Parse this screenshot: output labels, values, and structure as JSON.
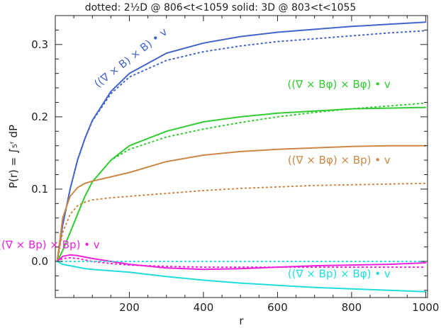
{
  "chart_data": {
    "type": "line",
    "title": "dotted: 2½D @ 806<t<1059     solid: 3D @ 803<t<1055",
    "xlabel": "r",
    "ylabel": "P(r) = ∫₅ʳ dP",
    "xlim": [
      0,
      1005
    ],
    "ylim": [
      -0.05,
      0.34
    ],
    "x_ticks": [
      200,
      400,
      600,
      800,
      1000
    ],
    "x_tick_labels": [
      "200",
      "400",
      "600",
      "800",
      "1000"
    ],
    "y_ticks": [
      0.0,
      0.1,
      0.2,
      0.3
    ],
    "y_tick_labels": [
      "0.0",
      "0.1",
      "0.2",
      "0.3"
    ],
    "grid": false,
    "series": [
      {
        "name": "((∇ × B) × B) • v",
        "color": "#4466cc",
        "style": "solid",
        "x": [
          5,
          20,
          40,
          60,
          80,
          100,
          150,
          200,
          300,
          400,
          500,
          600,
          700,
          800,
          900,
          1000
        ],
        "y": [
          0.0,
          0.05,
          0.1,
          0.14,
          0.17,
          0.195,
          0.235,
          0.26,
          0.288,
          0.302,
          0.311,
          0.317,
          0.321,
          0.325,
          0.328,
          0.331
        ]
      },
      {
        "name": "((∇ × B) × B) • v",
        "color": "#4466cc",
        "style": "dotted",
        "x": [
          5,
          20,
          40,
          60,
          80,
          100,
          150,
          200,
          300,
          400,
          500,
          600,
          700,
          800,
          900,
          1000
        ],
        "y": [
          0.0,
          0.05,
          0.1,
          0.14,
          0.17,
          0.194,
          0.232,
          0.255,
          0.278,
          0.29,
          0.298,
          0.304,
          0.308,
          0.312,
          0.316,
          0.319
        ]
      },
      {
        "name": "((∇ × Bφ) × Bφ) • v",
        "color": "#33cc33",
        "style": "solid",
        "x": [
          5,
          20,
          40,
          60,
          80,
          100,
          150,
          200,
          300,
          400,
          500,
          600,
          700,
          800,
          900,
          1000
        ],
        "y": [
          0.0,
          0.015,
          0.04,
          0.065,
          0.09,
          0.11,
          0.14,
          0.16,
          0.18,
          0.193,
          0.2,
          0.205,
          0.208,
          0.211,
          0.212,
          0.213
        ]
      },
      {
        "name": "((∇ × Bφ) × Bφ) • v",
        "color": "#33cc33",
        "style": "dotted",
        "x": [
          5,
          20,
          40,
          60,
          80,
          100,
          150,
          200,
          300,
          400,
          500,
          600,
          700,
          800,
          900,
          1000
        ],
        "y": [
          0.0,
          0.015,
          0.04,
          0.065,
          0.09,
          0.11,
          0.14,
          0.155,
          0.172,
          0.183,
          0.192,
          0.2,
          0.206,
          0.211,
          0.215,
          0.219
        ]
      },
      {
        "name": "((∇ × Bφ) × Bp) • v",
        "color": "#cc8844",
        "style": "solid",
        "x": [
          5,
          20,
          40,
          60,
          80,
          100,
          150,
          200,
          300,
          400,
          500,
          600,
          700,
          800,
          900,
          1000
        ],
        "y": [
          0.0,
          0.06,
          0.09,
          0.102,
          0.108,
          0.111,
          0.117,
          0.123,
          0.138,
          0.147,
          0.152,
          0.155,
          0.157,
          0.159,
          0.16,
          0.16
        ]
      },
      {
        "name": "((∇ × Bφ) × Bp) • v",
        "color": "#cc8844",
        "style": "dotted",
        "x": [
          5,
          20,
          40,
          60,
          80,
          100,
          150,
          200,
          300,
          400,
          500,
          600,
          700,
          800,
          900,
          1000
        ],
        "y": [
          0.0,
          0.04,
          0.065,
          0.077,
          0.082,
          0.085,
          0.088,
          0.09,
          0.094,
          0.098,
          0.101,
          0.103,
          0.105,
          0.106,
          0.107,
          0.108
        ]
      },
      {
        "name": "((∇ × Bp) × Bp) • v",
        "color": "#ee22dd",
        "style": "solid",
        "x": [
          5,
          20,
          40,
          60,
          80,
          100,
          150,
          200,
          300,
          400,
          500,
          600,
          700,
          800,
          900,
          1000
        ],
        "y": [
          0.0,
          0.007,
          0.009,
          0.008,
          0.006,
          0.004,
          0.0,
          -0.004,
          -0.009,
          -0.011,
          -0.01,
          -0.008,
          -0.006,
          -0.005,
          -0.004,
          -0.002
        ]
      },
      {
        "name": "((∇ × Bp) × Bp) • v",
        "color": "#ee22dd",
        "style": "dotted",
        "x": [
          5,
          20,
          40,
          60,
          80,
          100,
          150,
          200,
          300,
          400,
          500,
          600,
          700,
          800,
          900,
          1000
        ],
        "y": [
          0.0,
          0.004,
          0.005,
          0.004,
          0.002,
          0.0,
          -0.003,
          -0.005,
          -0.007,
          -0.008,
          -0.008,
          -0.008,
          -0.008,
          -0.008,
          -0.008,
          -0.008
        ]
      },
      {
        "name": "((∇ × Bp) × Bφ) • v",
        "color": "#22dddd",
        "style": "solid",
        "x": [
          5,
          20,
          40,
          60,
          80,
          100,
          150,
          200,
          300,
          400,
          500,
          600,
          700,
          800,
          900,
          1000
        ],
        "y": [
          0.0,
          -0.004,
          -0.006,
          -0.008,
          -0.01,
          -0.011,
          -0.013,
          -0.015,
          -0.021,
          -0.026,
          -0.03,
          -0.033,
          -0.036,
          -0.038,
          -0.04,
          -0.042
        ]
      },
      {
        "name": "((∇ × Bp) × Bφ) • v",
        "color": "#22dddd",
        "style": "dotted",
        "x": [
          5,
          20,
          40,
          60,
          80,
          100,
          150,
          200,
          300,
          400,
          500,
          600,
          700,
          800,
          900,
          1000
        ],
        "y": [
          0.0,
          0.0,
          0.0,
          0.0,
          0.0,
          0.0,
          0.0,
          0.0,
          0.0,
          0.0,
          0.0,
          0.0,
          0.0,
          0.0,
          0.0,
          0.0
        ]
      }
    ],
    "annotations": [
      {
        "text": "((∇ × B) × B) • v",
        "color": "#4466cc",
        "x": 115,
        "y": 0.24,
        "angle": -38
      },
      {
        "text": "((∇ × Bφ) × Bφ) • v",
        "color": "#33cc33",
        "x": 905,
        "y": 0.24
      },
      {
        "text": "((∇ × Bφ) × Bp) • v",
        "color": "#cc8844",
        "x": 905,
        "y": 0.135
      },
      {
        "text": "((∇ × Bp) × Bp) • v",
        "color": "#ee22dd",
        "x": 120,
        "y": 0.018
      },
      {
        "text": "((∇ × Bp) × Bφ) • v",
        "color": "#22dddd",
        "x": 905,
        "y": -0.022
      }
    ]
  }
}
